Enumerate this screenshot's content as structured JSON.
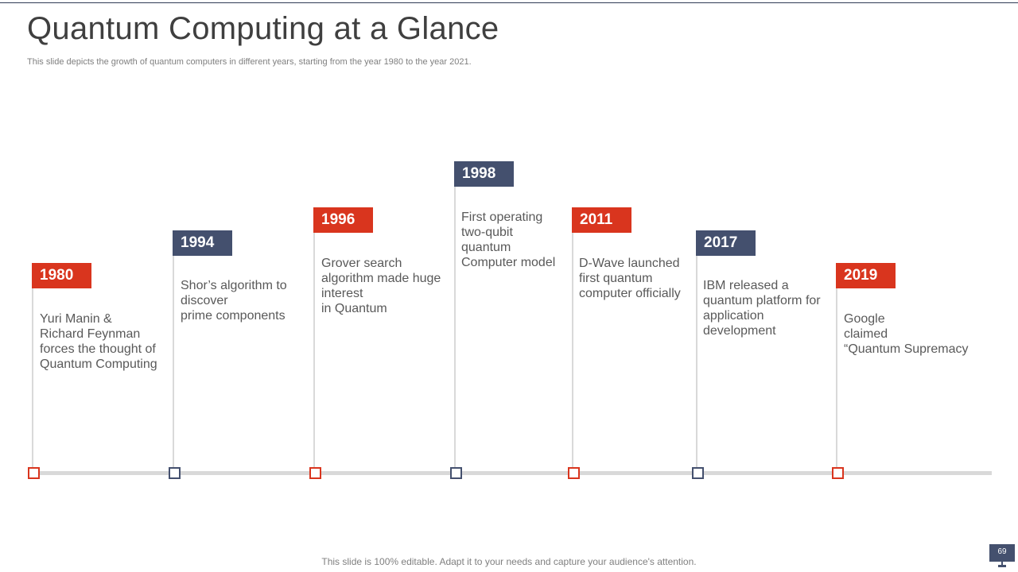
{
  "slide": {
    "title": "Quantum Computing at a Glance",
    "subtitle": "This slide depicts the growth of quantum computers in different years, starting from the year 1980 to the year 2021.",
    "footer": "This slide is 100% editable. Adapt it to your needs and capture your audience's attention.",
    "page_number": "69"
  },
  "colors": {
    "accent_red": "#d9351e",
    "accent_navy": "#44506e",
    "axis_gray": "#d9d9d9"
  },
  "timeline": [
    {
      "year": "1980",
      "color": "red",
      "text": "Yuri Manin &\nRichard Feynman\nforces the thought of\nQuantum  Computing"
    },
    {
      "year": "1994",
      "color": "navy",
      "text": "Shor’s algorithm to\ndiscover\nprime components"
    },
    {
      "year": "1996",
      "color": "red",
      "text": "Grover search\nalgorithm made huge\ninterest\nin Quantum"
    },
    {
      "year": "1998",
      "color": "navy",
      "text": "First operating\ntwo-qubit\nquantum\nComputer model"
    },
    {
      "year": "2011",
      "color": "red",
      "text": "D-Wave  launched\nfirst quantum\ncomputer officially"
    },
    {
      "year": "2017",
      "color": "navy",
      "text": "IBM released a\nquantum platform for\napplication\ndevelopment"
    },
    {
      "year": "2019",
      "color": "red",
      "text": "Google\nclaimed\n“Quantum  Supremacy"
    }
  ]
}
